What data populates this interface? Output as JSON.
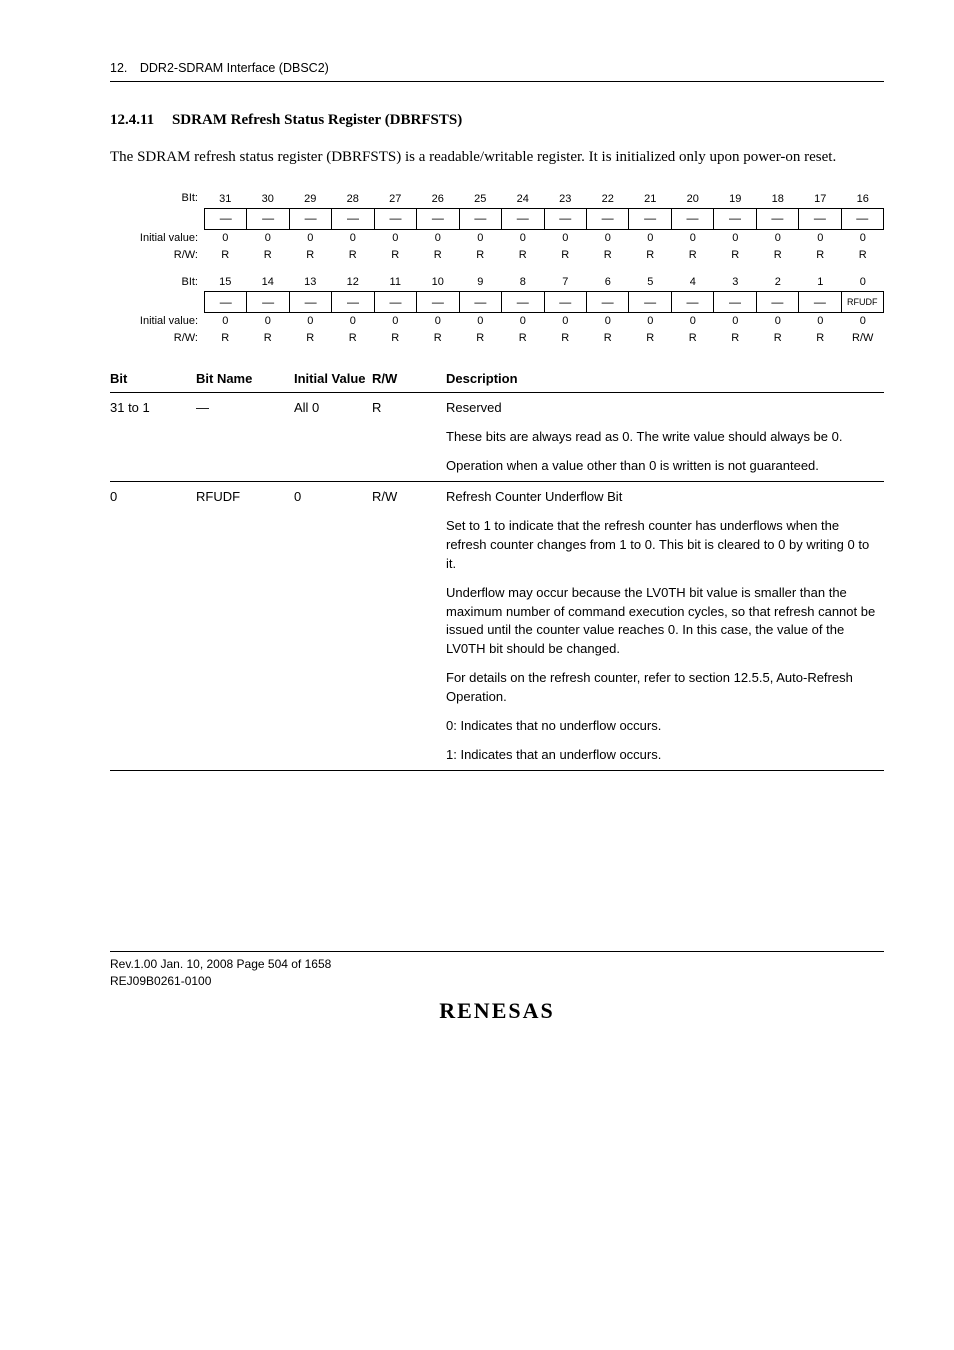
{
  "header": {
    "chapter": "12. DDR2-SDRAM Interface (DBSC2)"
  },
  "heading": {
    "number": "12.4.11",
    "title": "SDRAM Refresh Status Register (DBRFSTS)"
  },
  "intro": "The SDRAM refresh status register (DBRFSTS) is a readable/writable register. It is initialized only upon power-on reset.",
  "bit_diagram": {
    "rows": [
      {
        "label": "BIt:",
        "cells": [
          "31",
          "30",
          "29",
          "28",
          "27",
          "26",
          "25",
          "24",
          "23",
          "22",
          "21",
          "20",
          "19",
          "18",
          "17",
          "16"
        ],
        "box": false
      },
      {
        "label": "",
        "cells": [
          "—",
          "—",
          "—",
          "—",
          "—",
          "—",
          "—",
          "—",
          "—",
          "—",
          "—",
          "—",
          "—",
          "—",
          "—",
          "—"
        ],
        "box": true
      },
      {
        "label": "Initial value:",
        "cells": [
          "0",
          "0",
          "0",
          "0",
          "0",
          "0",
          "0",
          "0",
          "0",
          "0",
          "0",
          "0",
          "0",
          "0",
          "0",
          "0"
        ],
        "box": false
      },
      {
        "label": "R/W:",
        "cells": [
          "R",
          "R",
          "R",
          "R",
          "R",
          "R",
          "R",
          "R",
          "R",
          "R",
          "R",
          "R",
          "R",
          "R",
          "R",
          "R"
        ],
        "box": false
      }
    ],
    "rows2": [
      {
        "label": "BIt:",
        "cells": [
          "15",
          "14",
          "13",
          "12",
          "11",
          "10",
          "9",
          "8",
          "7",
          "6",
          "5",
          "4",
          "3",
          "2",
          "1",
          "0"
        ],
        "box": false
      },
      {
        "label": "",
        "cells": [
          "—",
          "—",
          "—",
          "—",
          "—",
          "—",
          "—",
          "—",
          "—",
          "—",
          "—",
          "—",
          "—",
          "—",
          "—",
          "RFUDF"
        ],
        "box": true
      },
      {
        "label": "Initial value:",
        "cells": [
          "0",
          "0",
          "0",
          "0",
          "0",
          "0",
          "0",
          "0",
          "0",
          "0",
          "0",
          "0",
          "0",
          "0",
          "0",
          "0"
        ],
        "box": false
      },
      {
        "label": "R/W:",
        "cells": [
          "R",
          "R",
          "R",
          "R",
          "R",
          "R",
          "R",
          "R",
          "R",
          "R",
          "R",
          "R",
          "R",
          "R",
          "R",
          "R/W"
        ],
        "box": false
      }
    ]
  },
  "desc_table": {
    "headers": {
      "bit": "Bit",
      "bitname": "Bit Name",
      "initial": "Initial Value",
      "rw": "R/W",
      "desc": "Description"
    },
    "rows": [
      {
        "bit": "31 to 1",
        "bitname": "—",
        "initial": "All 0",
        "rw": "R",
        "desc": [
          "Reserved",
          "These bits are always read as 0. The write value should always be 0.",
          "Operation when a value other than 0 is written is not guaranteed."
        ]
      },
      {
        "bit": "0",
        "bitname": "RFUDF",
        "initial": "0",
        "rw": "R/W",
        "desc": [
          "Refresh Counter Underflow Bit",
          "Set to 1 to indicate that the refresh counter has underflows when the refresh counter changes from 1 to 0. This bit is cleared to 0 by writing 0 to it.",
          "Underflow may occur because the LV0TH bit value is smaller than the maximum number of command execution cycles, so that refresh cannot be issued until the counter value reaches 0. In this case, the value of the LV0TH bit should be changed.",
          "For details on the refresh counter, refer to section 12.5.5, Auto-Refresh Operation.",
          "0: Indicates that no underflow occurs.",
          "1: Indicates that an underflow occurs."
        ]
      }
    ]
  },
  "footer": {
    "line1": "Rev.1.00  Jan. 10, 2008  Page 504 of 1658",
    "line2": "REJ09B0261-0100",
    "logo": "RENESAS"
  }
}
